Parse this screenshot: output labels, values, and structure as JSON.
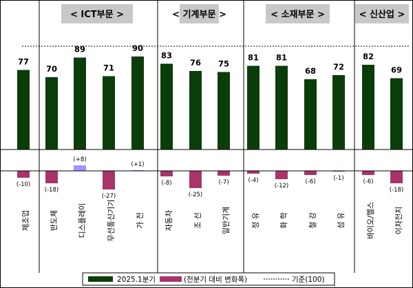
{
  "chart_data": {
    "type": "bar",
    "categories": [
      "제조업",
      "반도체",
      "디스플레이",
      "무선통신기기",
      "가 전",
      "자동차",
      "조 선",
      "일반기계",
      "정 유",
      "화 학",
      "철 강",
      "섬 유",
      "바이오/헬스",
      "이차전지"
    ],
    "series": [
      {
        "name": "2025.1분기",
        "values": [
          77,
          70,
          89,
          71,
          90,
          83,
          76,
          75,
          81,
          81,
          68,
          72,
          82,
          69
        ],
        "color": "#0a3d0a"
      },
      {
        "name": "(전분기 대비 변화폭)",
        "values": [
          -10,
          -18,
          8,
          -27,
          1,
          -8,
          -25,
          -7,
          -4,
          -12,
          -6,
          -1,
          -6,
          -18
        ],
        "positive_color": "#9999ff",
        "negative_color": "#a8346a"
      }
    ],
    "value_labels": [
      "77",
      "70",
      "89",
      "71",
      "90",
      "83",
      "76",
      "75",
      "81",
      "81",
      "68",
      "72",
      "82",
      "69"
    ],
    "change_labels": [
      "(-10)",
      "(-18)",
      "(+8)",
      "(-27)",
      "(+1)",
      "(-8)",
      "(-25)",
      "(-7)",
      "(-4)",
      "(-12)",
      "(-6)",
      "(-1)",
      "(-6)",
      "(-18)"
    ],
    "reference_line": {
      "value": 100,
      "legend_label": "기준(100)"
    },
    "sections": [
      {
        "label": "< ICT부문 >",
        "start": 1,
        "end": 4
      },
      {
        "label": "< 기계부문 >",
        "start": 5,
        "end": 7
      },
      {
        "label": "< 소재부문 >",
        "start": 8,
        "end": 11
      },
      {
        "label": "< 신산업 >",
        "start": 12,
        "end": 13
      }
    ],
    "legend_position": "bottom",
    "grid": false
  }
}
